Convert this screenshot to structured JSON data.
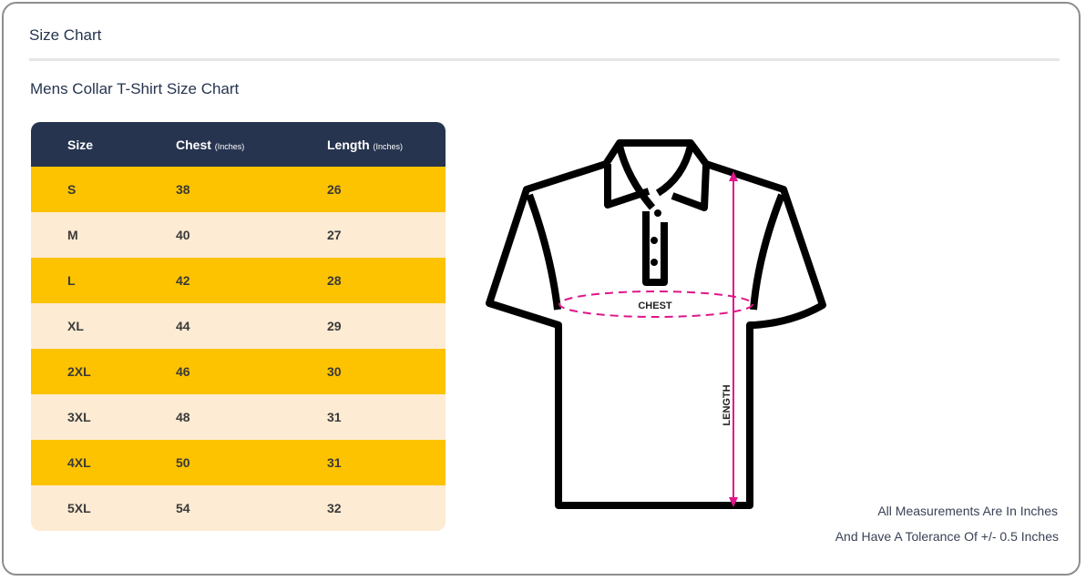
{
  "title": "Size Chart",
  "subtitle": "Mens Collar T-Shirt Size Chart",
  "table": {
    "headers": [
      {
        "label": "Size",
        "unit": ""
      },
      {
        "label": "Chest",
        "unit": "(Inches)"
      },
      {
        "label": "Length",
        "unit": "(Inches)"
      }
    ],
    "rows": [
      [
        "S",
        "38",
        "26"
      ],
      [
        "M",
        "40",
        "27"
      ],
      [
        "L",
        "42",
        "28"
      ],
      [
        "XL",
        "44",
        "29"
      ],
      [
        "2XL",
        "46",
        "30"
      ],
      [
        "3XL",
        "48",
        "31"
      ],
      [
        "4XL",
        "50",
        "31"
      ],
      [
        "5XL",
        "54",
        "32"
      ]
    ]
  },
  "diagram": {
    "chest_label": "CHEST",
    "length_label": "LENGTH"
  },
  "notes": [
    "All Measurements Are In Inches",
    "And Have A Tolerance Of +/- 0.5 Inches"
  ],
  "colors": {
    "header": "#26344f",
    "row_odd": "#fdc300",
    "row_even": "#fdebd3",
    "measure": "#e0158a"
  }
}
